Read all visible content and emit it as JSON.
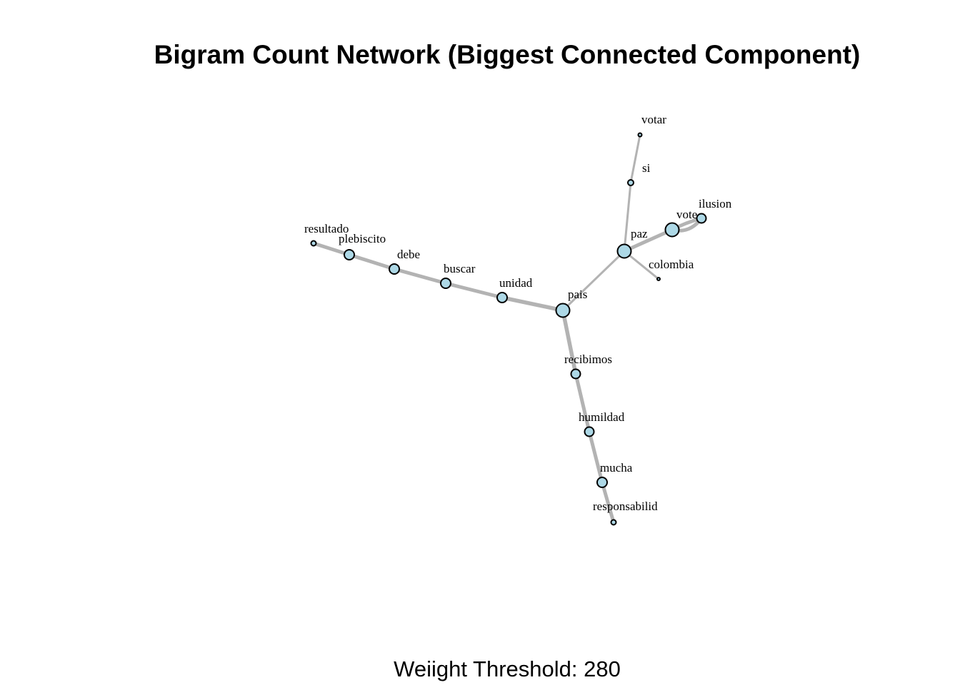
{
  "title": "Bigram Count Network (Biggest Connected Component)",
  "caption": "Weiight Threshold: 280",
  "colors": {
    "node_fill": "#add8e6",
    "node_stroke": "#000000",
    "edge": "#b3b3b3"
  },
  "nodes": [
    {
      "id": "resultado",
      "label": "resultado"
    },
    {
      "id": "plebiscito",
      "label": "plebiscito"
    },
    {
      "id": "debe",
      "label": "debe"
    },
    {
      "id": "buscar",
      "label": "buscar"
    },
    {
      "id": "unidad",
      "label": "unidad"
    },
    {
      "id": "pais",
      "label": "pais"
    },
    {
      "id": "recibimos",
      "label": "recibimos"
    },
    {
      "id": "humildad",
      "label": "humildad"
    },
    {
      "id": "mucha",
      "label": "mucha"
    },
    {
      "id": "responsabilid",
      "label": "responsabilid"
    },
    {
      "id": "paz",
      "label": "paz"
    },
    {
      "id": "colombia",
      "label": "colombia"
    },
    {
      "id": "si",
      "label": "si"
    },
    {
      "id": "votar",
      "label": "votar"
    },
    {
      "id": "vote",
      "label": "vote"
    },
    {
      "id": "ilusion",
      "label": "ilusion"
    }
  ],
  "edges": [
    {
      "source": "resultado",
      "target": "plebiscito"
    },
    {
      "source": "plebiscito",
      "target": "debe"
    },
    {
      "source": "debe",
      "target": "buscar"
    },
    {
      "source": "buscar",
      "target": "unidad"
    },
    {
      "source": "unidad",
      "target": "pais"
    },
    {
      "source": "pais",
      "target": "recibimos"
    },
    {
      "source": "recibimos",
      "target": "humildad"
    },
    {
      "source": "humildad",
      "target": "mucha"
    },
    {
      "source": "mucha",
      "target": "responsabilid"
    },
    {
      "source": "pais",
      "target": "paz"
    },
    {
      "source": "paz",
      "target": "colombia"
    },
    {
      "source": "paz",
      "target": "si"
    },
    {
      "source": "si",
      "target": "votar"
    },
    {
      "source": "paz",
      "target": "vote"
    },
    {
      "source": "vote",
      "target": "ilusion"
    }
  ]
}
